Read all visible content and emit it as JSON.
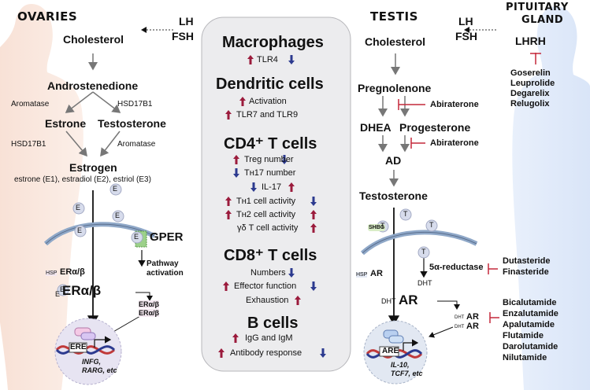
{
  "left": {
    "organ": "OVARIES",
    "hormones": [
      "LH",
      "FSH"
    ],
    "cholesterol": "Cholesterol",
    "androstenedione": "Androstenedione",
    "aromatase": "Aromatase",
    "hsd17b1": "HSD17B1",
    "estrone": "Estrone",
    "testosterone": "Testosterone",
    "estrogen": "Estrogen",
    "estrogen_forms": "estrone (E1), estradiol (E2), estriol (E3)",
    "e": "E",
    "gper": "GPER",
    "pathway_activation": [
      "Pathway",
      "activation"
    ],
    "hsp": "HSP",
    "er_ab": "ERα/β",
    "ere": "ERE",
    "genes": [
      "INFG,",
      "RARG, etc"
    ]
  },
  "center": {
    "macrophages": "Macrophages",
    "tlr4": "TLR4",
    "dendritic": "Dendritic cells",
    "activation": "Activation",
    "tlr79": "TLR7 and TLR9",
    "cd4": "CD4⁺ T cells",
    "treg": "Treg number",
    "th17_number": "Tʜ17 number",
    "il17": "IL-17",
    "th1_activity": "Tʜ1 cell activity",
    "th2_activity": "Tʜ2 cell activity",
    "gd_activity": "γδ T cell activity",
    "cd8": "CD8⁺ T cells",
    "numbers": "Numbers",
    "effector": "Effector function",
    "exhaustion": "Exhaustion",
    "bcells": "B cells",
    "igg": "IgG and IgM",
    "antibody": "Antibody response"
  },
  "right": {
    "organ": "TESTIS",
    "hormones": [
      "LH",
      "FSH"
    ],
    "pituitary": [
      "PITUITARY",
      "GLAND"
    ],
    "lhrh": "LHRH",
    "lhrh_drugs": [
      "Goserelin",
      "Leuprolide",
      "Degarelix",
      "Relugolix"
    ],
    "cholesterol": "Cholesterol",
    "pregnolenone": "Pregnolenone",
    "abiraterone": "Abiraterone",
    "dhea": "DHEA",
    "progesterone": "Progesterone",
    "ad": "AD",
    "testosterone": "Testosterone",
    "t": "T",
    "shbg": "SHBG",
    "reductase": "5α-reductase",
    "reductase_drugs": [
      "Dutasteride",
      "Finasteride"
    ],
    "hsp": "HSP",
    "ar": "AR",
    "dht": "DHT",
    "ar_drugs": [
      "Bicalutamide",
      "Enzalutamide",
      "Apalutamide",
      "Flutamide",
      "Darolutamide",
      "Nilutamide"
    ],
    "are": "ARE",
    "genes": [
      "IL-10,",
      "TCF7, etc"
    ]
  },
  "colors": {
    "up": "#9b1b3c",
    "down": "#2c3a8f",
    "inhibit": "#c4283a"
  }
}
